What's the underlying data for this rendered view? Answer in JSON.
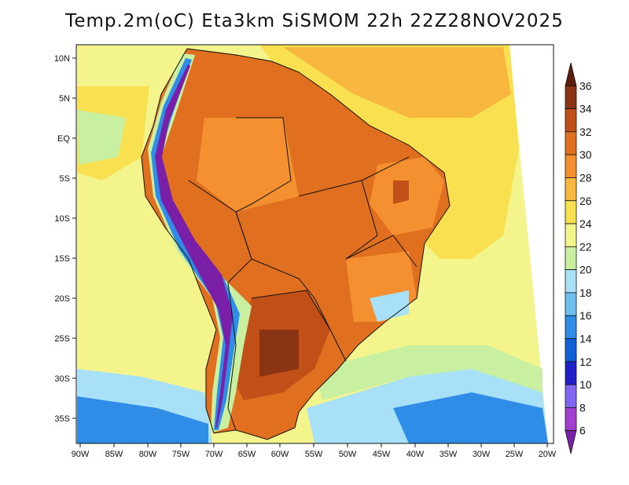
{
  "title": "Temp.2m(oC) Eta3km SiSMOM 22h 22Z28NOV2025",
  "lat_ticks": [
    "10N",
    "5N",
    "EQ",
    "5S",
    "10S",
    "15S",
    "20S",
    "25S",
    "30S",
    "35S"
  ],
  "lon_ticks": [
    "90W",
    "85W",
    "80W",
    "75W",
    "70W",
    "65W",
    "60W",
    "55W",
    "50W",
    "45W",
    "40W",
    "35W",
    "30W",
    "25W",
    "20W"
  ],
  "colorbar": {
    "levels": [
      "6",
      "8",
      "10",
      "12",
      "14",
      "16",
      "18",
      "20",
      "22",
      "24",
      "26",
      "28",
      "30",
      "32",
      "34",
      "36"
    ],
    "colors": [
      "#7a1fa8",
      "#a23fd0",
      "#8066f0",
      "#2020c8",
      "#1060d8",
      "#2f8de8",
      "#6ec0f0",
      "#a8e0f8",
      "#c8f0a0",
      "#f4f48c",
      "#f8e050",
      "#f8b840",
      "#f49030",
      "#e07020",
      "#c05018",
      "#8a3414",
      "#5a1e0a"
    ]
  },
  "map_colors": {
    "ocean_warm": "#f8e050",
    "ocean_mild": "#f4f48c",
    "ocean_cool": "#a8e0f8",
    "land_hot": "#e07020",
    "land_veryhot": "#c05018",
    "land_warm": "#f49030",
    "andes_cold": "#7a1fa8"
  }
}
